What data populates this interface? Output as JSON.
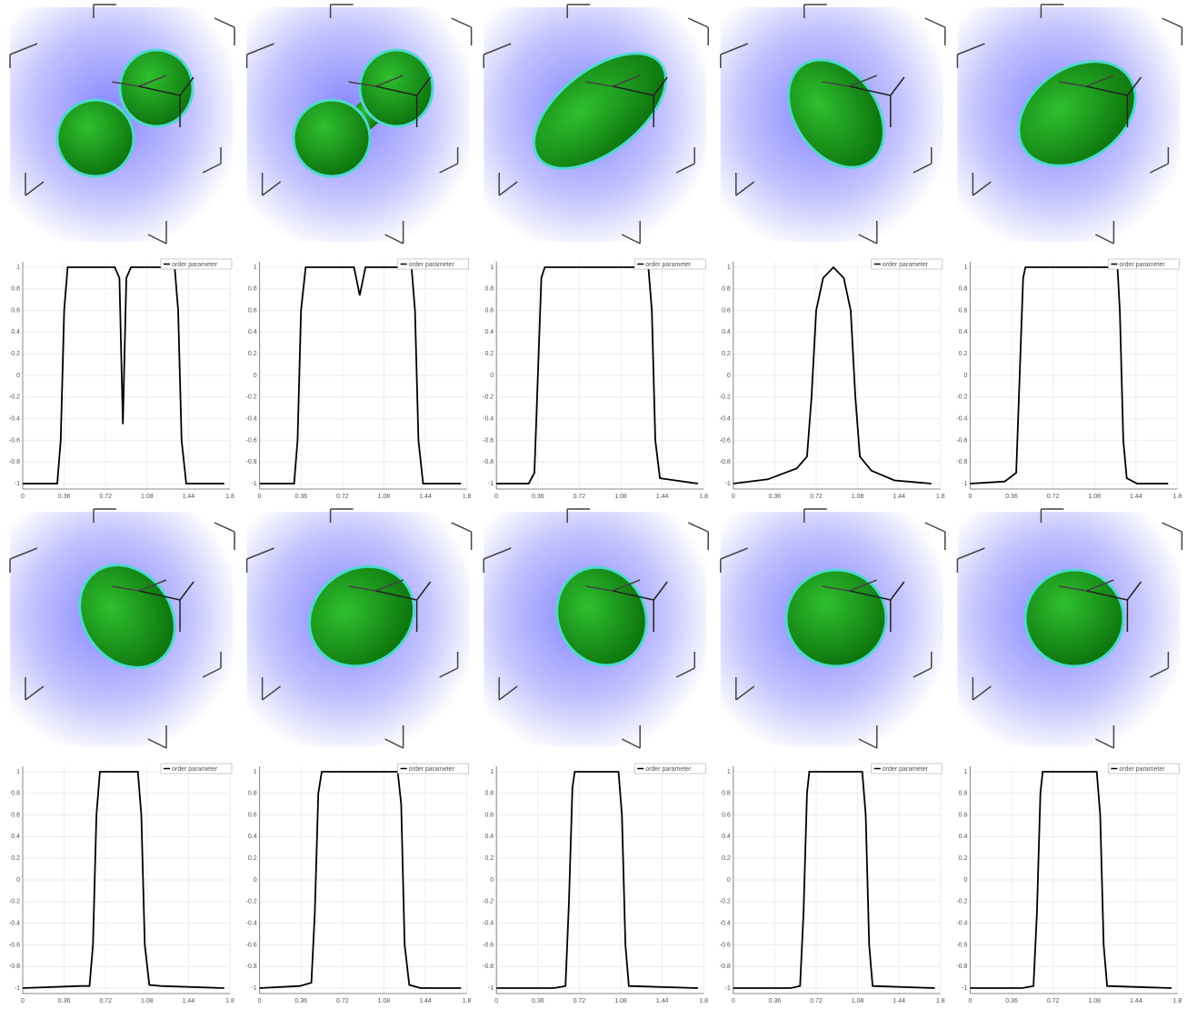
{
  "chart_data": [
    {
      "type": "line",
      "x": [
        0,
        0.3,
        0.33,
        0.36,
        0.39,
        0.8,
        0.84,
        0.87,
        0.9,
        0.94,
        1.32,
        1.35,
        1.38,
        1.42,
        1.75
      ],
      "series": [
        {
          "name": "order parameter",
          "color": "#000000",
          "values": [
            -1,
            -1,
            -0.6,
            0.6,
            1,
            1,
            0.9,
            -0.45,
            0.9,
            1,
            1,
            0.6,
            -0.6,
            -1,
            -1
          ]
        }
      ],
      "xlim": [
        0,
        1.8
      ],
      "ylim": [
        -1.05,
        1.05
      ],
      "xticks": [
        0,
        0.36,
        0.72,
        1.08,
        1.44,
        1.8
      ],
      "yticks": [
        -1,
        -0.8,
        -0.6,
        -0.4,
        -0.2,
        0,
        0.2,
        0.4,
        0.6,
        0.8,
        1
      ],
      "grid": true
    },
    {
      "type": "line",
      "x": [
        0,
        0.3,
        0.33,
        0.36,
        0.4,
        0.82,
        0.87,
        0.92,
        1.32,
        1.35,
        1.38,
        1.42,
        1.75
      ],
      "series": [
        {
          "name": "order parameter",
          "color": "#000000",
          "values": [
            -1,
            -1,
            -0.6,
            0.6,
            1,
            1,
            0.74,
            1,
            1,
            0.6,
            -0.6,
            -1,
            -1
          ]
        }
      ],
      "xlim": [
        0,
        1.8
      ],
      "ylim": [
        -1.05,
        1.05
      ],
      "xticks": [
        0,
        0.36,
        0.72,
        1.08,
        1.44,
        1.8
      ],
      "yticks": [
        -1,
        -0.8,
        -0.6,
        -0.4,
        -0.2,
        0,
        0.2,
        0.4,
        0.6,
        0.8,
        1
      ],
      "grid": true
    },
    {
      "type": "line",
      "x": [
        0,
        0.28,
        0.33,
        0.36,
        0.39,
        0.42,
        1.32,
        1.35,
        1.38,
        1.42,
        1.75
      ],
      "series": [
        {
          "name": "order parameter",
          "color": "#000000",
          "values": [
            -1,
            -1,
            -0.9,
            0,
            0.9,
            1,
            1,
            0.6,
            -0.6,
            -0.95,
            -1
          ]
        }
      ],
      "xlim": [
        0,
        1.8
      ],
      "ylim": [
        -1.05,
        1.05
      ],
      "xticks": [
        0,
        0.36,
        0.72,
        1.08,
        1.44,
        1.8
      ],
      "yticks": [
        -1,
        -0.8,
        -0.6,
        -0.4,
        -0.2,
        0,
        0.2,
        0.4,
        0.6,
        0.8,
        1
      ],
      "grid": true
    },
    {
      "type": "line",
      "x": [
        0,
        0.3,
        0.55,
        0.64,
        0.68,
        0.72,
        0.78,
        0.87,
        0.96,
        1.02,
        1.06,
        1.1,
        1.2,
        1.4,
        1.72
      ],
      "series": [
        {
          "name": "order parameter",
          "color": "#000000",
          "values": [
            -1,
            -0.96,
            -0.86,
            -0.75,
            -0.2,
            0.6,
            0.9,
            1,
            0.9,
            0.6,
            -0.2,
            -0.75,
            -0.88,
            -0.97,
            -1
          ]
        }
      ],
      "xlim": [
        0,
        1.8
      ],
      "ylim": [
        -1.05,
        1.05
      ],
      "xticks": [
        0,
        0.36,
        0.72,
        1.08,
        1.44,
        1.8
      ],
      "yticks": [
        -1,
        -0.8,
        -0.6,
        -0.4,
        -0.2,
        0,
        0.2,
        0.4,
        0.6,
        0.8,
        1
      ],
      "grid": true
    },
    {
      "type": "line",
      "x": [
        0,
        0.3,
        0.4,
        0.43,
        0.46,
        0.48,
        1.28,
        1.3,
        1.33,
        1.36,
        1.45,
        1.72
      ],
      "series": [
        {
          "name": "order parameter",
          "color": "#000000",
          "values": [
            -1,
            -0.98,
            -0.9,
            0,
            0.9,
            1,
            1,
            0.6,
            -0.6,
            -0.95,
            -1,
            -1
          ]
        }
      ],
      "xlim": [
        0,
        1.8
      ],
      "ylim": [
        -1.05,
        1.05
      ],
      "xticks": [
        0,
        0.36,
        0.72,
        1.08,
        1.44,
        1.8
      ],
      "yticks": [
        -1,
        -0.8,
        -0.6,
        -0.4,
        -0.2,
        0,
        0.2,
        0.4,
        0.6,
        0.8,
        1
      ],
      "grid": true
    },
    {
      "type": "line",
      "x": [
        0,
        0.5,
        0.58,
        0.61,
        0.64,
        0.67,
        1.0,
        1.03,
        1.06,
        1.1,
        1.2,
        1.75
      ],
      "series": [
        {
          "name": "order parameter",
          "color": "#000000",
          "values": [
            -1,
            -0.98,
            -0.98,
            -0.6,
            0.6,
            1,
            1,
            0.6,
            -0.6,
            -0.97,
            -0.98,
            -1
          ]
        }
      ],
      "xlim": [
        0,
        1.8
      ],
      "ylim": [
        -1.05,
        1.05
      ],
      "xticks": [
        0,
        0.36,
        0.72,
        1.08,
        1.44,
        1.8
      ],
      "yticks": [
        -1,
        -0.8,
        -0.6,
        -0.4,
        -0.2,
        0,
        0.2,
        0.4,
        0.6,
        0.8,
        1
      ],
      "grid": true
    },
    {
      "type": "line",
      "x": [
        0,
        0.35,
        0.45,
        0.48,
        0.51,
        0.54,
        1.2,
        1.23,
        1.26,
        1.3,
        1.4,
        1.75
      ],
      "series": [
        {
          "name": "order parameter",
          "color": "#000000",
          "values": [
            -1,
            -0.98,
            -0.95,
            -0.3,
            0.8,
            1,
            1,
            0.7,
            -0.6,
            -0.97,
            -1,
            -1
          ]
        }
      ],
      "xlim": [
        0,
        1.8
      ],
      "ylim": [
        -1.05,
        1.05
      ],
      "xticks": [
        0,
        0.36,
        0.72,
        1.08,
        1.44,
        1.8
      ],
      "yticks": [
        -1,
        -0.8,
        -0.6,
        -0.4,
        -0.2,
        0,
        0.2,
        0.4,
        0.6,
        0.8,
        1
      ],
      "grid": true
    },
    {
      "type": "line",
      "x": [
        0,
        0.5,
        0.6,
        0.63,
        0.66,
        0.68,
        1.06,
        1.09,
        1.12,
        1.15,
        1.75
      ],
      "series": [
        {
          "name": "order parameter",
          "color": "#000000",
          "values": [
            -1,
            -1,
            -0.98,
            -0.2,
            0.85,
            1,
            1,
            0.6,
            -0.6,
            -0.98,
            -1
          ]
        }
      ],
      "xlim": [
        0,
        1.8
      ],
      "ylim": [
        -1.05,
        1.05
      ],
      "xticks": [
        0,
        0.36,
        0.72,
        1.08,
        1.44,
        1.8
      ],
      "yticks": [
        -1,
        -0.8,
        -0.6,
        -0.4,
        -0.2,
        0,
        0.2,
        0.4,
        0.6,
        0.8,
        1
      ],
      "grid": true
    },
    {
      "type": "line",
      "x": [
        0,
        0.5,
        0.58,
        0.61,
        0.64,
        0.66,
        1.12,
        1.15,
        1.18,
        1.21,
        1.75
      ],
      "series": [
        {
          "name": "order parameter",
          "color": "#000000",
          "values": [
            -1,
            -1,
            -0.98,
            -0.3,
            0.8,
            1,
            1,
            0.6,
            -0.6,
            -0.98,
            -1
          ]
        }
      ],
      "xlim": [
        0,
        1.8
      ],
      "ylim": [
        -1.05,
        1.05
      ],
      "xticks": [
        0,
        0.36,
        0.72,
        1.08,
        1.44,
        1.8
      ],
      "yticks": [
        -1,
        -0.8,
        -0.6,
        -0.4,
        -0.2,
        0,
        0.2,
        0.4,
        0.6,
        0.8,
        1
      ],
      "grid": true
    },
    {
      "type": "line",
      "x": [
        0,
        0.45,
        0.55,
        0.58,
        0.61,
        0.63,
        1.1,
        1.13,
        1.16,
        1.19,
        1.75
      ],
      "series": [
        {
          "name": "order parameter",
          "color": "#000000",
          "values": [
            -1,
            -1,
            -0.98,
            -0.3,
            0.8,
            1,
            1,
            0.6,
            -0.6,
            -0.98,
            -1
          ]
        }
      ],
      "xlim": [
        0,
        1.8
      ],
      "ylim": [
        -1.05,
        1.05
      ],
      "xticks": [
        0,
        0.36,
        0.72,
        1.08,
        1.44,
        1.8
      ],
      "yticks": [
        -1,
        -0.8,
        -0.6,
        -0.4,
        -0.2,
        0,
        0.2,
        0.4,
        0.6,
        0.8,
        1
      ],
      "grid": true
    }
  ]
}
